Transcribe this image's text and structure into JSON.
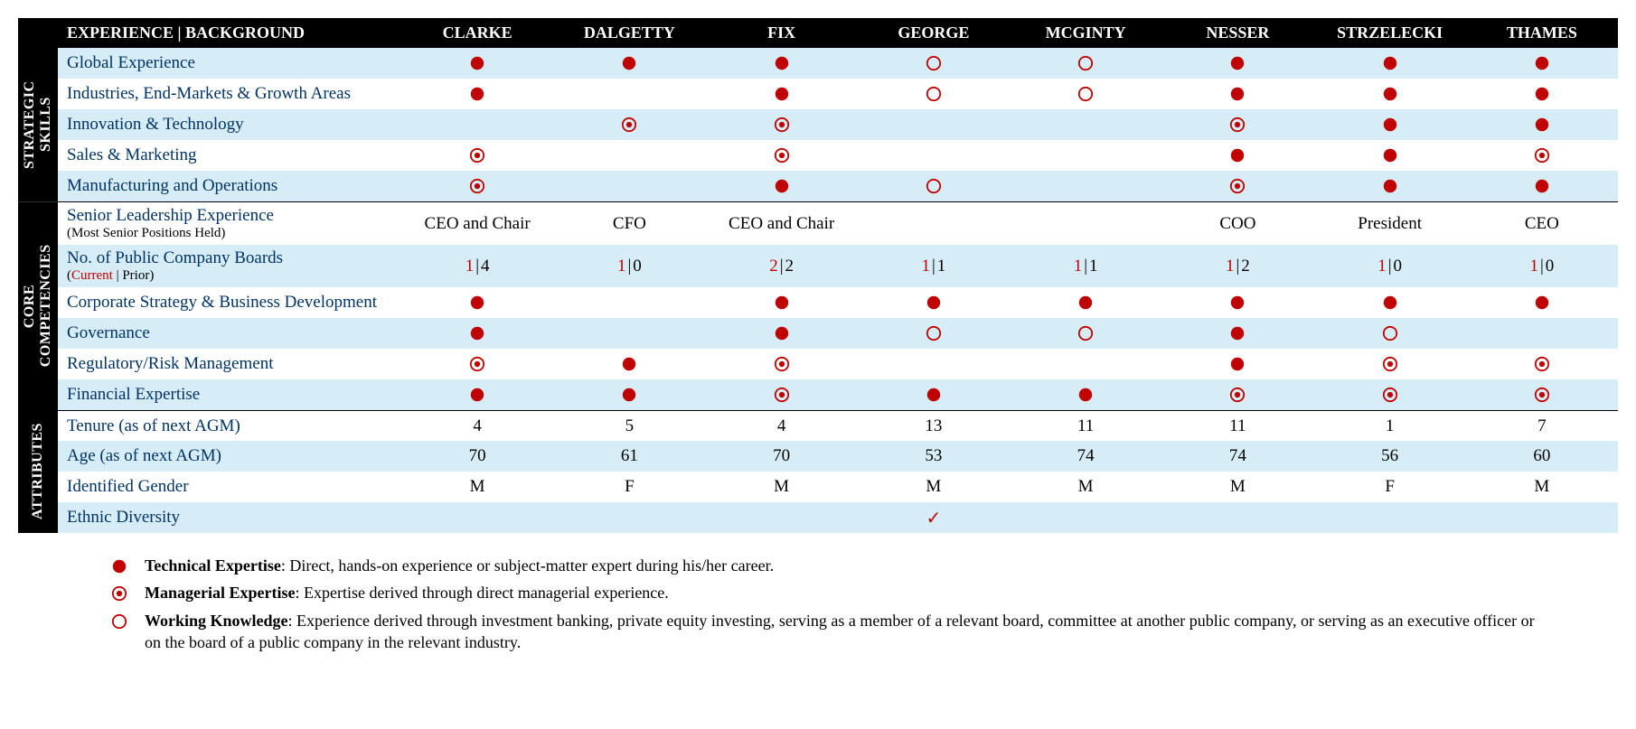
{
  "colors": {
    "header_bg": "#000000",
    "header_fg": "#ffffff",
    "row_alt_bg": "#d6ecf7",
    "row_plain_bg": "#ffffff",
    "label_color": "#003366",
    "marker_color": "#c00000",
    "current_color": "#c00000"
  },
  "header": {
    "title": "EXPERIENCE | BACKGROUND",
    "people": [
      "CLARKE",
      "DALGETTY",
      "FIX",
      "GEORGE",
      "MCGINTY",
      "NESSER",
      "STRZELECKI",
      "THAMES"
    ]
  },
  "marker_types": {
    "full": "Technical Expertise",
    "dot": "Managerial Expertise",
    "ring": "Working Knowledge"
  },
  "sections": [
    {
      "id": "strategic",
      "label": "STRATEGIC SKILLS",
      "rows": [
        {
          "label": "Global Experience",
          "alt": true,
          "cells": [
            {
              "m": "full"
            },
            {
              "m": "full"
            },
            {
              "m": "full"
            },
            {
              "m": "ring"
            },
            {
              "m": "ring"
            },
            {
              "m": "full"
            },
            {
              "m": "full"
            },
            {
              "m": "full"
            }
          ]
        },
        {
          "label": "Industries, End-Markets & Growth Areas",
          "alt": false,
          "cells": [
            {
              "m": "full"
            },
            {
              "m": null
            },
            {
              "m": "full"
            },
            {
              "m": "ring"
            },
            {
              "m": "ring"
            },
            {
              "m": "full"
            },
            {
              "m": "full"
            },
            {
              "m": "full"
            }
          ]
        },
        {
          "label": "Innovation & Technology",
          "alt": true,
          "cells": [
            {
              "m": null
            },
            {
              "m": "dot"
            },
            {
              "m": "dot"
            },
            {
              "m": null
            },
            {
              "m": null
            },
            {
              "m": "dot"
            },
            {
              "m": "full"
            },
            {
              "m": "full"
            }
          ]
        },
        {
          "label": "Sales & Marketing",
          "alt": false,
          "cells": [
            {
              "m": "dot"
            },
            {
              "m": null
            },
            {
              "m": "dot"
            },
            {
              "m": null
            },
            {
              "m": null
            },
            {
              "m": "full"
            },
            {
              "m": "full"
            },
            {
              "m": "dot"
            }
          ]
        },
        {
          "label": "Manufacturing and Operations",
          "alt": true,
          "cells": [
            {
              "m": "dot"
            },
            {
              "m": null
            },
            {
              "m": "full"
            },
            {
              "m": "ring"
            },
            {
              "m": null
            },
            {
              "m": "dot"
            },
            {
              "m": "full"
            },
            {
              "m": "full"
            }
          ]
        }
      ]
    },
    {
      "id": "core",
      "label": "CORE COMPETENCIES",
      "rows": [
        {
          "label": "Senior Leadership Experience",
          "sub_plain": "(Most Senior Positions Held)",
          "alt": false,
          "divider": true,
          "cells": [
            {
              "t": "CEO and Chair"
            },
            {
              "t": "CFO"
            },
            {
              "t": "CEO and Chair"
            },
            {
              "t": ""
            },
            {
              "t": ""
            },
            {
              "t": "COO"
            },
            {
              "t": "President"
            },
            {
              "t": "CEO"
            }
          ]
        },
        {
          "label": "No. of Public Company Boards",
          "sub_current": "Current",
          "sub_sep": " | ",
          "sub_prior": "Prior",
          "alt": true,
          "cells": [
            {
              "b": {
                "c": "1",
                "p": "4"
              }
            },
            {
              "b": {
                "c": "1",
                "p": "0"
              }
            },
            {
              "b": {
                "c": "2",
                "p": "2"
              }
            },
            {
              "b": {
                "c": "1",
                "p": "1"
              }
            },
            {
              "b": {
                "c": "1",
                "p": "1"
              }
            },
            {
              "b": {
                "c": "1",
                "p": "2"
              }
            },
            {
              "b": {
                "c": "1",
                "p": "0"
              }
            },
            {
              "b": {
                "c": "1",
                "p": "0"
              }
            }
          ]
        },
        {
          "label": "Corporate Strategy & Business Development",
          "alt": false,
          "cells": [
            {
              "m": "full"
            },
            {
              "m": null
            },
            {
              "m": "full"
            },
            {
              "m": "full"
            },
            {
              "m": "full"
            },
            {
              "m": "full"
            },
            {
              "m": "full"
            },
            {
              "m": "full"
            }
          ]
        },
        {
          "label": "Governance",
          "alt": true,
          "cells": [
            {
              "m": "full"
            },
            {
              "m": null
            },
            {
              "m": "full"
            },
            {
              "m": "ring"
            },
            {
              "m": "ring"
            },
            {
              "m": "full"
            },
            {
              "m": "ring"
            },
            {
              "m": null
            }
          ]
        },
        {
          "label": "Regulatory/Risk Management",
          "alt": false,
          "cells": [
            {
              "m": "dot"
            },
            {
              "m": "full"
            },
            {
              "m": "dot"
            },
            {
              "m": null
            },
            {
              "m": null
            },
            {
              "m": "full"
            },
            {
              "m": "dot"
            },
            {
              "m": "dot"
            }
          ]
        },
        {
          "label": "Financial Expertise",
          "alt": true,
          "cells": [
            {
              "m": "full"
            },
            {
              "m": "full"
            },
            {
              "m": "dot"
            },
            {
              "m": "full"
            },
            {
              "m": "full"
            },
            {
              "m": "dot"
            },
            {
              "m": "dot"
            },
            {
              "m": "dot"
            }
          ]
        }
      ]
    },
    {
      "id": "attributes",
      "label": "ATTRIBUTES",
      "rows": [
        {
          "label": "Tenure (as of next AGM)",
          "alt": false,
          "divider": true,
          "cells": [
            {
              "t": "4"
            },
            {
              "t": "5"
            },
            {
              "t": "4"
            },
            {
              "t": "13"
            },
            {
              "t": "11"
            },
            {
              "t": "11"
            },
            {
              "t": "1"
            },
            {
              "t": "7"
            }
          ]
        },
        {
          "label": "Age (as of next AGM)",
          "alt": true,
          "cells": [
            {
              "t": "70"
            },
            {
              "t": "61"
            },
            {
              "t": "70"
            },
            {
              "t": "53"
            },
            {
              "t": "74"
            },
            {
              "t": "74"
            },
            {
              "t": "56"
            },
            {
              "t": "60"
            }
          ]
        },
        {
          "label": "Identified Gender",
          "alt": false,
          "cells": [
            {
              "t": "M"
            },
            {
              "t": "F"
            },
            {
              "t": "M"
            },
            {
              "t": "M"
            },
            {
              "t": "M"
            },
            {
              "t": "M"
            },
            {
              "t": "F"
            },
            {
              "t": "M"
            }
          ]
        },
        {
          "label": "Ethnic Diversity",
          "alt": true,
          "cells": [
            {
              "t": ""
            },
            {
              "t": ""
            },
            {
              "t": ""
            },
            {
              "check": true
            },
            {
              "t": ""
            },
            {
              "t": ""
            },
            {
              "t": ""
            },
            {
              "t": ""
            }
          ]
        }
      ]
    }
  ],
  "legend": [
    {
      "marker": "full",
      "term": "Technical Expertise",
      "desc": ": Direct, hands-on experience or subject-matter expert during his/her career."
    },
    {
      "marker": "dot",
      "term": "Managerial Expertise",
      "desc": ": Expertise derived through direct managerial experience."
    },
    {
      "marker": "ring",
      "term": "Working Knowledge",
      "desc": ": Experience derived through investment banking, private equity investing, serving as a member of a relevant board, committee at another public company, or serving as an executive officer or on the board of a public company in the relevant industry."
    }
  ]
}
